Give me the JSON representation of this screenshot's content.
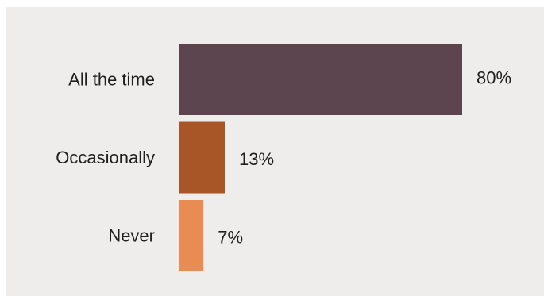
{
  "chart_data": {
    "type": "bar",
    "orientation": "horizontal",
    "categories": [
      "All the time",
      "Occasionally",
      "Never"
    ],
    "values": [
      80,
      13,
      7
    ],
    "value_labels": [
      "80%",
      "13%",
      "7%"
    ],
    "colors": [
      "#5c454e",
      "#a85528",
      "#e88c54"
    ],
    "xlim": [
      0,
      100
    ],
    "grid": false,
    "legend": "none",
    "title": "",
    "xlabel": "",
    "ylabel": ""
  }
}
